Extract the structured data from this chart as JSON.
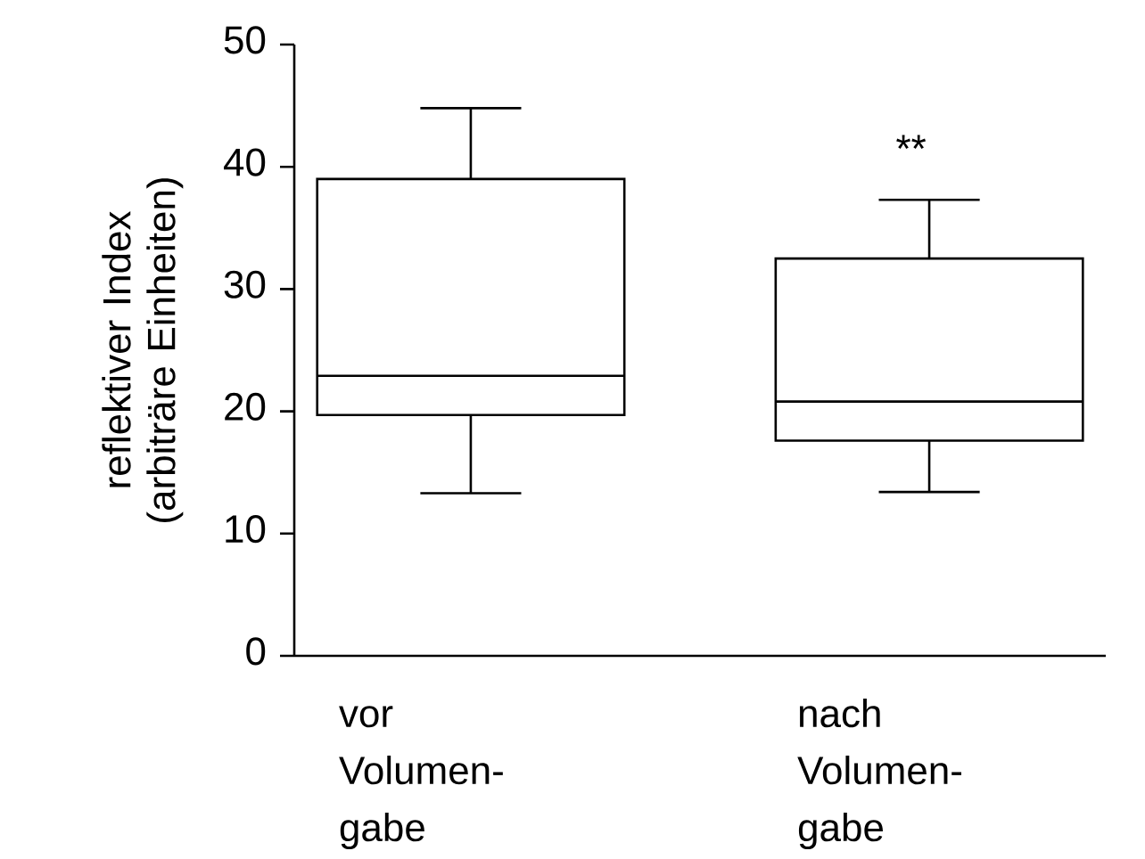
{
  "chart_data": {
    "type": "box",
    "ylabel": "reflektiver Index (arbiträre Einheiten)",
    "categories": [
      "vor Volumen-gabe",
      "nach Volumen-gabe"
    ],
    "boxes": [
      {
        "low": 13.3,
        "q1": 19.7,
        "median": 22.9,
        "q3": 39.0,
        "high": 44.8
      },
      {
        "low": 13.4,
        "q1": 17.6,
        "median": 20.8,
        "q3": 32.5,
        "high": 37.3
      }
    ],
    "ylim": [
      0,
      50
    ],
    "yticks": [
      0,
      10,
      20,
      30,
      40,
      50
    ],
    "annotations": [
      "**"
    ]
  }
}
